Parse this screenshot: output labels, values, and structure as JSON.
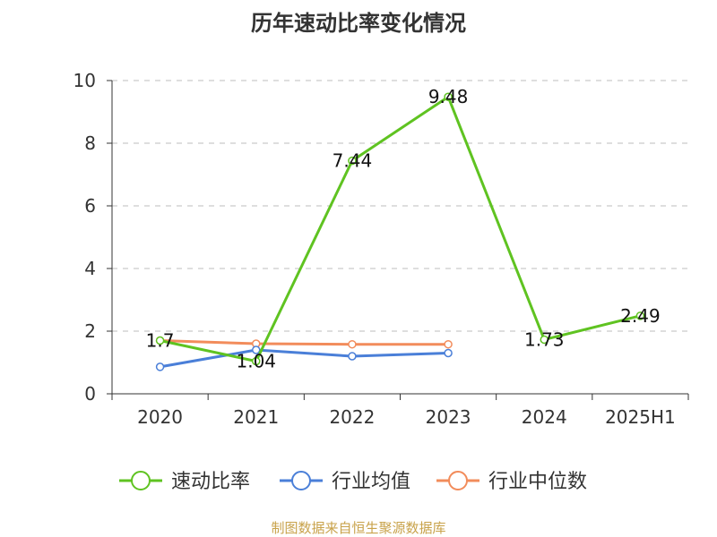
{
  "title": "历年速动比率变化情况",
  "source": "制图数据来自恒生聚源数据库",
  "chart_data": {
    "type": "line",
    "categories": [
      "2020",
      "2021",
      "2022",
      "2023",
      "2024",
      "2025H1"
    ],
    "ylim": [
      0,
      10
    ],
    "yticks": [
      0,
      2,
      4,
      6,
      8,
      10
    ],
    "grid": true,
    "legend_position": "bottom",
    "series": [
      {
        "name": "速动比率",
        "color": "#5fc321",
        "values": [
          1.7,
          1.04,
          7.44,
          9.48,
          1.73,
          2.49
        ],
        "labels": [
          "1.7",
          "1.04",
          "7.44",
          "9.48",
          "1.73",
          "2.49"
        ],
        "show_labels": true
      },
      {
        "name": "行业均值",
        "color": "#4a7fd8",
        "values": [
          0.86,
          1.4,
          1.2,
          1.3,
          null,
          null
        ],
        "show_labels": false
      },
      {
        "name": "行业中位数",
        "color": "#f28c5b",
        "values": [
          1.7,
          1.6,
          1.58,
          1.58,
          null,
          null
        ],
        "show_labels": false
      }
    ]
  }
}
